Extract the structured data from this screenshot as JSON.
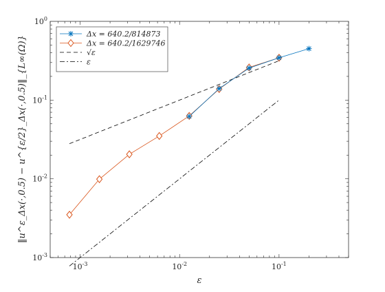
{
  "chart_data": {
    "type": "line",
    "title": "",
    "xlabel": "ε",
    "ylabel": "‖u^ε_Δx(·,0.5) − u^{ε/2}_Δx(·,0.5)‖_{L∞(Ω)}",
    "x_scale": "log",
    "y_scale": "log",
    "xlim": [
      0.0005,
      0.5
    ],
    "ylim": [
      0.001,
      1
    ],
    "grid": false,
    "legend_position": "top-left",
    "x_ticks": [
      {
        "value": 0.001,
        "label": "10^-3"
      },
      {
        "value": 0.01,
        "label": "10^-2"
      },
      {
        "value": 0.1,
        "label": "10^-1"
      }
    ],
    "y_ticks": [
      {
        "value": 0.001,
        "label": "10^-3"
      },
      {
        "value": 0.01,
        "label": "10^-2"
      },
      {
        "value": 0.1,
        "label": "10^-1"
      },
      {
        "value": 1,
        "label": "10^0"
      }
    ],
    "series": [
      {
        "name": "Δx = 640.2/814873",
        "color": "#0072BD",
        "marker": "asterisk",
        "line": "solid",
        "x": [
          0.0125,
          0.025,
          0.05,
          0.1,
          0.2
        ],
        "y": [
          0.062,
          0.14,
          0.255,
          0.345,
          0.45
        ]
      },
      {
        "name": "Δx = 640.2/1629746",
        "color": "#D95319",
        "marker": "diamond",
        "line": "solid",
        "x": [
          0.00078125,
          0.0015625,
          0.003125,
          0.00625,
          0.0125,
          0.025,
          0.05,
          0.1
        ],
        "y": [
          0.0035,
          0.0099,
          0.0205,
          0.035,
          0.063,
          0.138,
          0.26,
          0.345
        ]
      },
      {
        "name": "√ε",
        "color": "#000000",
        "marker": "none",
        "line": "dashed",
        "x": [
          0.00078125,
          0.1
        ],
        "y": [
          0.02795,
          0.3162
        ]
      },
      {
        "name": "ε",
        "color": "#000000",
        "marker": "none",
        "line": "dashdot",
        "x": [
          0.00078125,
          0.1
        ],
        "y": [
          0.00078125,
          0.1
        ]
      }
    ]
  }
}
